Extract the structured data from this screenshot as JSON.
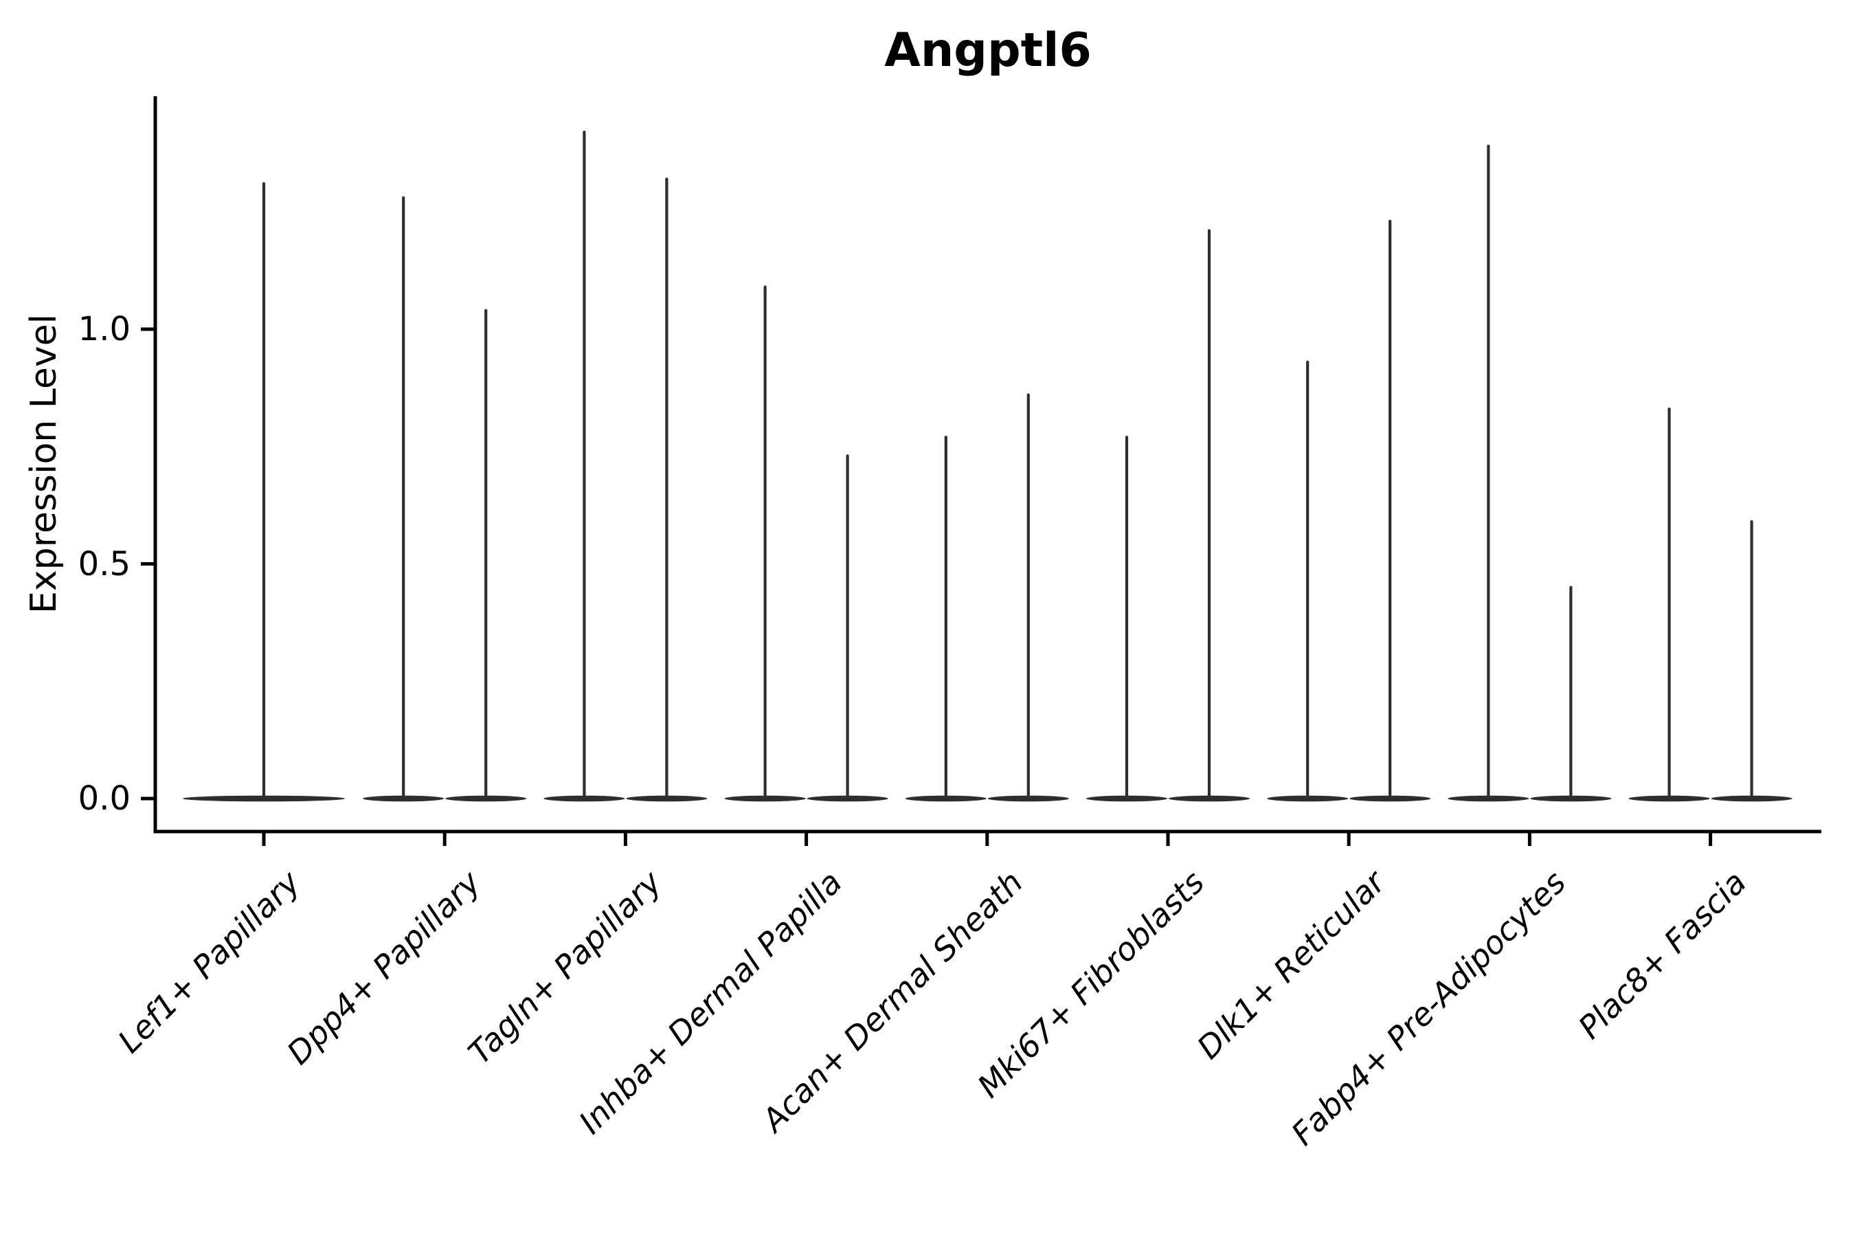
{
  "chart_data": {
    "type": "violin",
    "title": "Angptl6",
    "ylabel": "Expression Level",
    "xlabel": "",
    "ylim": [
      -0.07,
      1.49
    ],
    "yticks": [
      0,
      0.5,
      1.0
    ],
    "ytick_labels": [
      "0.0",
      "0.5",
      "1.0"
    ],
    "grid": false,
    "legend": "none",
    "violin_color": "#2e2e2e",
    "axis_color": "#000000",
    "background_color": "#ffffff",
    "distribution_note": "each violin has its density bulk at 0 (flat lens-shaped base) with a hair-thin spike rising to the maximum expression value",
    "categories": [
      "Lef1+ Papillary",
      "Dpp4+ Papillary",
      "Tagln+ Papillary",
      "Inhba+ Dermal Papilla",
      "Acan+ Dermal Sheath",
      "Mki67+ Fibroblasts",
      "Dlk1+ Reticular",
      "Fabp4+ Pre-Adipocytes",
      "Plac8+ Fascia"
    ],
    "groups": [
      {
        "label": "Lef1+ Papillary",
        "violin_max_values": [
          1.31
        ]
      },
      {
        "label": "Dpp4+ Papillary",
        "violin_max_values": [
          1.28,
          1.04
        ]
      },
      {
        "label": "Tagln+ Papillary",
        "violin_max_values": [
          1.42,
          1.32
        ]
      },
      {
        "label": "Inhba+ Dermal Papilla",
        "violin_max_values": [
          1.09,
          0.73
        ]
      },
      {
        "label": "Acan+ Dermal Sheath",
        "violin_max_values": [
          0.77,
          0.86
        ]
      },
      {
        "label": "Mki67+ Fibroblasts",
        "violin_max_values": [
          0.77,
          1.21
        ]
      },
      {
        "label": "Dlk1+ Reticular",
        "violin_max_values": [
          0.93,
          1.23
        ]
      },
      {
        "label": "Fabp4+ Pre-Adipocytes",
        "violin_max_values": [
          1.39,
          0.45
        ]
      },
      {
        "label": "Plac8+ Fascia",
        "violin_max_values": [
          0.83,
          0.59
        ]
      }
    ]
  }
}
